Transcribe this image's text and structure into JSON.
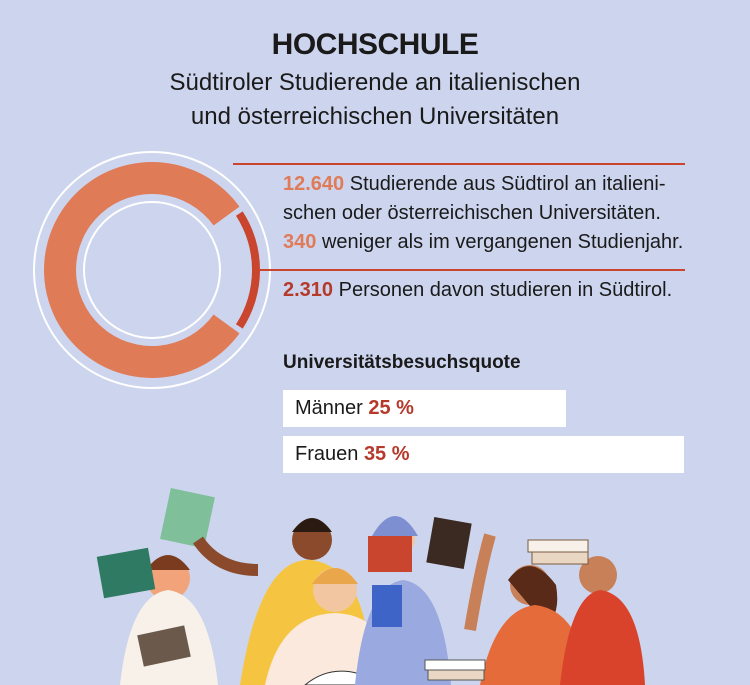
{
  "header": {
    "title": "HOCHSCHULE",
    "subtitle_line1": "Südtiroler Studierende an italienischen",
    "subtitle_line2": "und österreichischen Universitäten"
  },
  "stats": {
    "total_number": "12.640",
    "total_text_line1": "Studierende aus Südtirol an italieni-",
    "total_text_line2": "schen oder österreichischen Universitäten.",
    "decline_number": "340",
    "decline_text": "weniger als im vergangenen Studienjahr.",
    "local_number": "2.310",
    "local_text": "Personen davon studieren in Südtirol."
  },
  "quota": {
    "heading": "Universitätsbesuchsquote",
    "men_label": "Männer",
    "men_value": "25 %",
    "women_label": "Frauen",
    "women_value": "35 %"
  },
  "colors": {
    "background": "#cdd5ee",
    "main_segment": "#e07b58",
    "highlight_segment": "#c9452e",
    "number_light": "#e07b58",
    "number_dark": "#b53a2b"
  },
  "chart_data": {
    "type": "pie",
    "title": "",
    "total": 12640,
    "series": [
      {
        "values": [
          10330,
          2310
        ]
      }
    ]
  }
}
